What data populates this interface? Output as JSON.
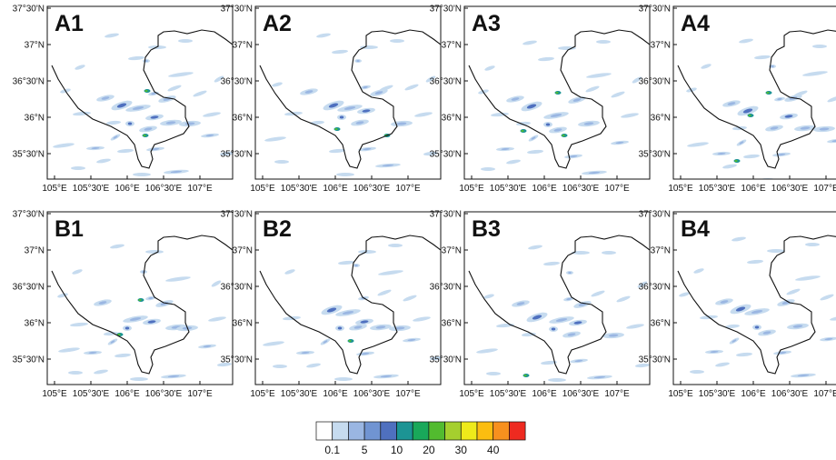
{
  "panels": [
    {
      "id": "A1"
    },
    {
      "id": "A2"
    },
    {
      "id": "A3"
    },
    {
      "id": "A4"
    },
    {
      "id": "B1"
    },
    {
      "id": "B2"
    },
    {
      "id": "B3"
    },
    {
      "id": "B4"
    }
  ],
  "lat_ticks": [
    "37°30'N",
    "37°N",
    "36°30'N",
    "36°N",
    "35°30'N"
  ],
  "lon_ticks": [
    "105°E",
    "105°30'E",
    "106°E",
    "106°30'E",
    "107°E"
  ],
  "colorbar": {
    "colors": [
      "#ffffff",
      "#c6dbef",
      "#9ab6e2",
      "#7094d2",
      "#4f70bf",
      "#1c9494",
      "#19a85a",
      "#52bb2f",
      "#a5cf2e",
      "#eeea1a",
      "#fbbd10",
      "#f7901e",
      "#ee2a20"
    ],
    "labels": [
      "0.1",
      "5",
      "10",
      "20",
      "30",
      "40"
    ]
  }
}
